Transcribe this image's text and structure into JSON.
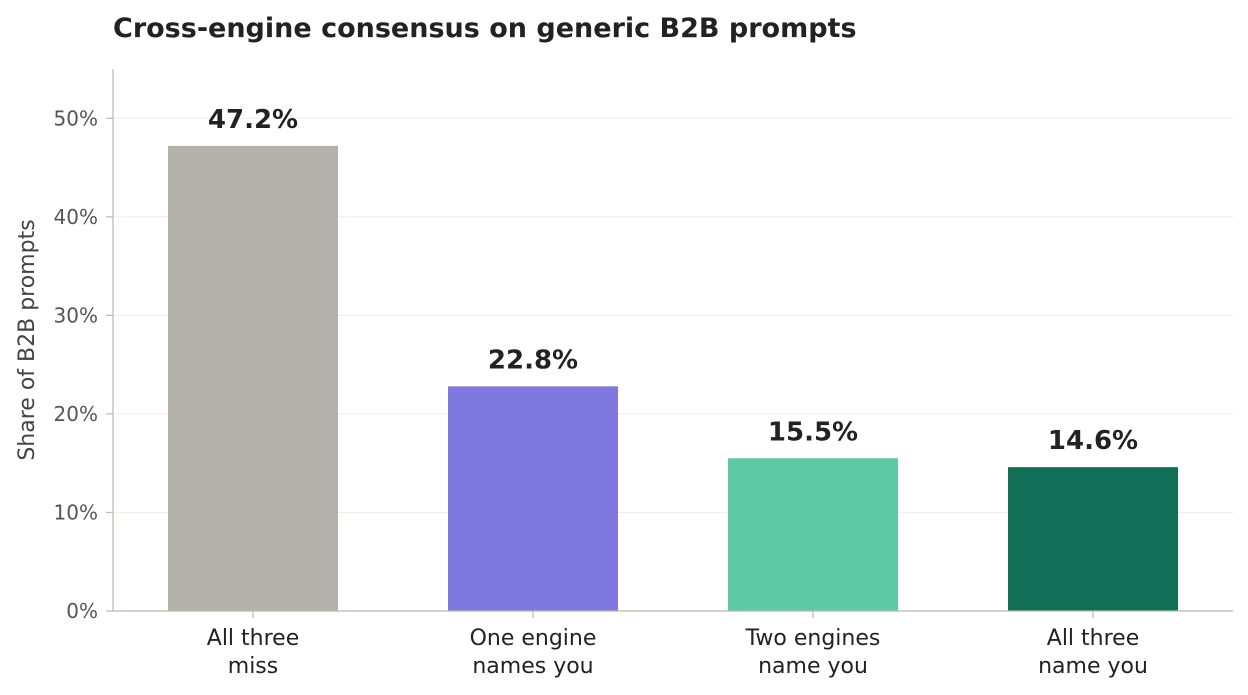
{
  "chart_data": {
    "type": "bar",
    "title": "Cross-engine consensus on generic B2B prompts",
    "xlabel": "",
    "ylabel": "Share of B2B prompts",
    "categories": [
      [
        "All three",
        "miss"
      ],
      [
        "One engine",
        "names you"
      ],
      [
        "Two engines",
        "name you"
      ],
      [
        "All three",
        "name you"
      ]
    ],
    "values": [
      47.2,
      22.8,
      15.5,
      14.6
    ],
    "value_labels": [
      "47.2%",
      "22.8%",
      "15.5%",
      "14.6%"
    ],
    "colors": [
      "#b4b1aa",
      "#7f78de",
      "#5ec9a4",
      "#116f58"
    ],
    "ylim": [
      0,
      55
    ],
    "yticks": [
      0,
      10,
      20,
      30,
      40,
      50
    ],
    "ytick_labels": [
      "0%",
      "10%",
      "20%",
      "30%",
      "40%",
      "50%"
    ],
    "grid": "horizontal, faint",
    "legend": "none"
  }
}
